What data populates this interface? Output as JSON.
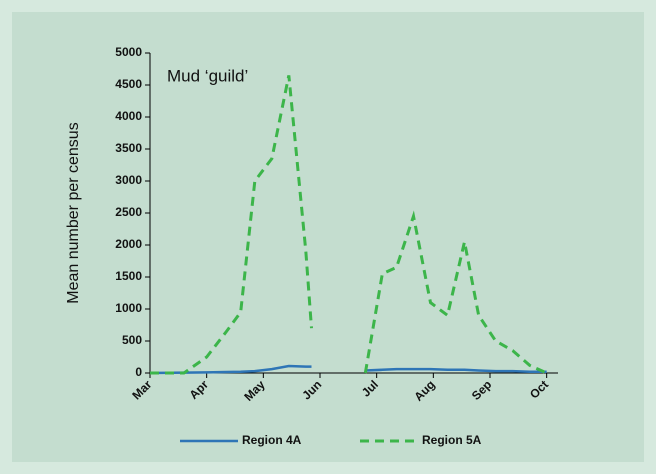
{
  "chart_data": {
    "type": "line",
    "annotation": "Mud ‘guild’",
    "y_label": "Mean number per census",
    "x": [
      0,
      0.6,
      1,
      1.35,
      1.6,
      1.85,
      2.15,
      2.45,
      2.75,
      2.85,
      3.3,
      3.8,
      4.1,
      4.35,
      4.65,
      4.95,
      5.25,
      5.55,
      5.8,
      6.1,
      6.4,
      6.7,
      7
    ],
    "series": [
      {
        "name": "Region 4A",
        "color": "#2e75b6",
        "dashed": false,
        "values": [
          0,
          5,
          10,
          15,
          20,
          30,
          60,
          110,
          100,
          100,
          null,
          40,
          50,
          60,
          60,
          60,
          50,
          50,
          40,
          30,
          30,
          20,
          20
        ]
      },
      {
        "name": "Region 5A",
        "color": "#3cb54a",
        "dashed": true,
        "values": [
          0,
          0,
          250,
          650,
          950,
          3000,
          3350,
          4650,
          1900,
          700,
          null,
          0,
          1550,
          1650,
          2450,
          1100,
          900,
          2050,
          900,
          500,
          350,
          120,
          0
        ]
      }
    ],
    "xlim": [
      0,
      7.2
    ],
    "xticks": [
      {
        "value": 0,
        "label": "Mar"
      },
      {
        "value": 1,
        "label": "Apr"
      },
      {
        "value": 2,
        "label": "May"
      },
      {
        "value": 3,
        "label": "Jun"
      },
      {
        "value": 4,
        "label": "Jul"
      },
      {
        "value": 5,
        "label": "Aug"
      },
      {
        "value": 6,
        "label": "Sep"
      },
      {
        "value": 7,
        "label": "Oct"
      }
    ],
    "ylim": [
      0,
      5000
    ],
    "yticks": [
      0,
      500,
      1000,
      1500,
      2000,
      2500,
      3000,
      3500,
      4000,
      4500,
      5000
    ],
    "grid": false,
    "legend": "bottom"
  }
}
